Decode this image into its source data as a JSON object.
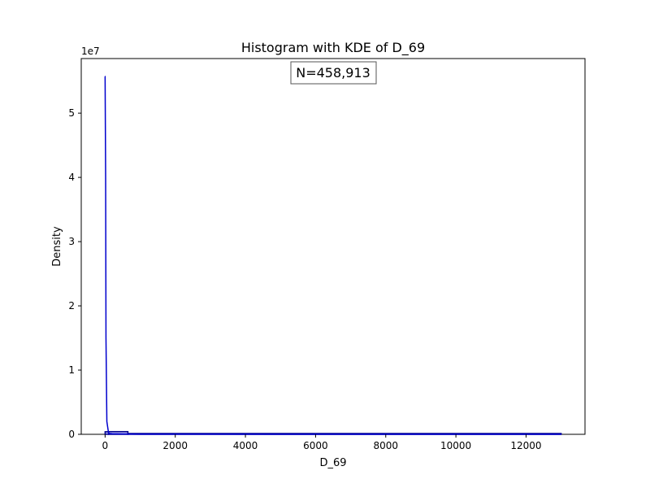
{
  "chart_data": {
    "type": "histogram",
    "title": "Histogram with KDE of D_69",
    "xlabel": "D_69",
    "ylabel": "Density",
    "y_offset_label": "1e7",
    "annotation": "N=458,913",
    "xlim": [
      -680,
      13680
    ],
    "ylim": [
      0,
      58500000
    ],
    "x_ticks": [
      0,
      2000,
      4000,
      6000,
      8000,
      10000,
      12000
    ],
    "x_tick_labels": [
      "0",
      "2000",
      "4000",
      "6000",
      "8000",
      "10000",
      "12000"
    ],
    "y_ticks": [
      0,
      10000000,
      20000000,
      30000000,
      40000000,
      50000000
    ],
    "y_tick_labels": [
      "0",
      "1",
      "2",
      "3",
      "4",
      "5"
    ],
    "histogram": {
      "bins": [
        {
          "x0": 0,
          "x1": 100,
          "value": 400000
        },
        {
          "x0": 100,
          "x1": 650,
          "value": 420000
        },
        {
          "x0": 650,
          "x1": 13000,
          "value": 0
        }
      ],
      "edge_color": "#00008b",
      "fill_color": "#4a4ae0"
    },
    "kde": {
      "x": [
        -10,
        0,
        15,
        25,
        50,
        100,
        200,
        500,
        1000,
        2000,
        5000,
        10000,
        13000
      ],
      "y": [
        55700000,
        55700000,
        40000000,
        15000000,
        2000000,
        150000,
        80000,
        40000,
        20000,
        10000,
        5000,
        2000,
        0
      ],
      "color": "#0000cd"
    },
    "grid": false,
    "legend": "none"
  }
}
